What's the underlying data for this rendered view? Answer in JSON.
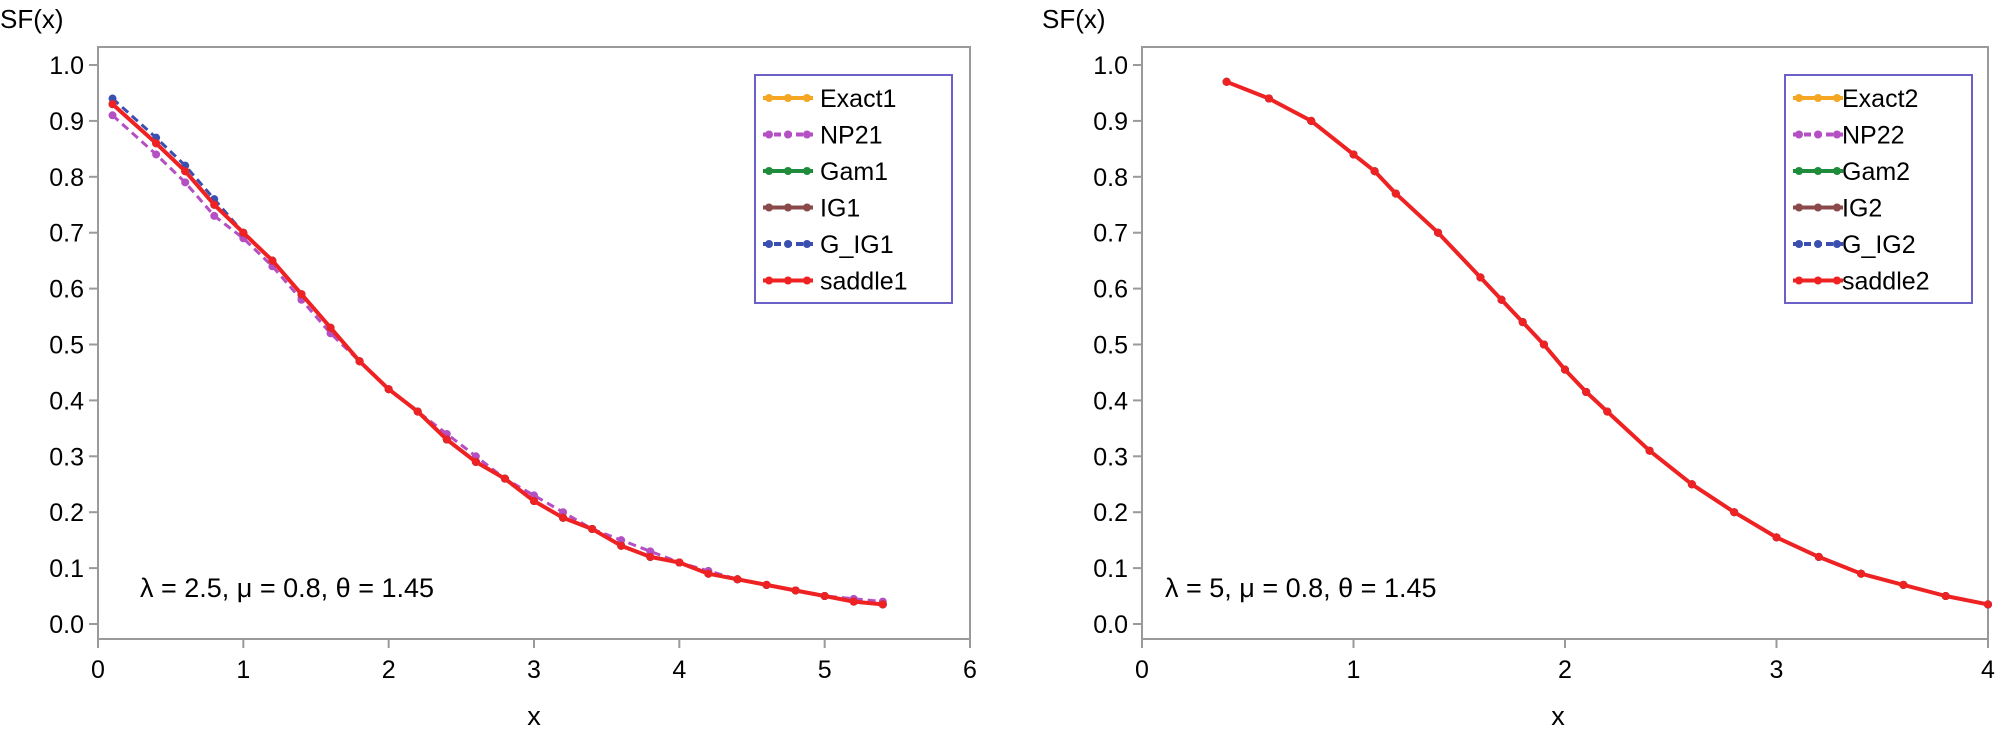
{
  "chart_data": [
    {
      "type": "line",
      "ylabel": "SF(x)",
      "xlabel": "x",
      "xlim": [
        0,
        6
      ],
      "ylim": [
        0.0,
        1.0
      ],
      "xticks": [
        "0",
        "1",
        "2",
        "3",
        "4",
        "5",
        "6"
      ],
      "yticks": [
        "0.0",
        "0.1",
        "0.2",
        "0.3",
        "0.4",
        "0.5",
        "0.6",
        "0.7",
        "0.8",
        "0.9",
        "1.0"
      ],
      "annotation": "λ = 2.5, μ = 0.8, θ = 1.45",
      "legend_position": "top-right",
      "x": [
        0.1,
        0.4,
        0.6,
        0.8,
        1.0,
        1.2,
        1.4,
        1.6,
        1.8,
        2.0,
        2.2,
        2.4,
        2.6,
        2.8,
        3.0,
        3.2,
        3.4,
        3.6,
        3.8,
        4.0,
        4.2,
        4.4,
        4.6,
        4.8,
        5.0,
        5.2,
        5.4
      ],
      "series": [
        {
          "name": "Exact1",
          "color": "#f5a623",
          "dash": "",
          "values": [
            0.93,
            0.86,
            0.81,
            0.75,
            0.7,
            0.65,
            0.59,
            0.53,
            0.47,
            0.42,
            0.38,
            0.33,
            0.29,
            0.26,
            0.22,
            0.19,
            0.17,
            0.14,
            0.12,
            0.11,
            0.09,
            0.08,
            0.07,
            0.06,
            0.05,
            0.04,
            0.035
          ]
        },
        {
          "name": "NP21",
          "color": "#b44fc4",
          "dash": "8,5",
          "values": [
            0.91,
            0.84,
            0.79,
            0.73,
            0.69,
            0.64,
            0.58,
            0.52,
            0.47,
            0.42,
            0.38,
            0.34,
            0.3,
            0.26,
            0.23,
            0.2,
            0.17,
            0.15,
            0.13,
            0.11,
            0.095,
            0.08,
            0.07,
            0.06,
            0.05,
            0.045,
            0.04
          ]
        },
        {
          "name": "Gam1",
          "color": "#1e8c3a",
          "dash": "",
          "values": [
            0.93,
            0.86,
            0.81,
            0.75,
            0.7,
            0.65,
            0.59,
            0.53,
            0.47,
            0.42,
            0.38,
            0.33,
            0.29,
            0.26,
            0.22,
            0.19,
            0.17,
            0.14,
            0.12,
            0.11,
            0.09,
            0.08,
            0.07,
            0.06,
            0.05,
            0.04,
            0.035
          ]
        },
        {
          "name": "IG1",
          "color": "#8b4a4a",
          "dash": "",
          "values": [
            0.93,
            0.86,
            0.81,
            0.75,
            0.7,
            0.65,
            0.59,
            0.53,
            0.47,
            0.42,
            0.38,
            0.33,
            0.29,
            0.26,
            0.22,
            0.19,
            0.17,
            0.14,
            0.12,
            0.11,
            0.09,
            0.08,
            0.07,
            0.06,
            0.05,
            0.04,
            0.035
          ]
        },
        {
          "name": "G_IG1",
          "color": "#3b4fb0",
          "dash": "8,5",
          "values": [
            0.94,
            0.87,
            0.82,
            0.76,
            0.7,
            0.65,
            0.59,
            0.53,
            0.47,
            0.42,
            0.38,
            0.33,
            0.29,
            0.26,
            0.22,
            0.19,
            0.17,
            0.14,
            0.12,
            0.11,
            0.09,
            0.08,
            0.07,
            0.06,
            0.05,
            0.04,
            0.035
          ]
        },
        {
          "name": "saddle1",
          "color": "#ee2222",
          "dash": "",
          "values": [
            0.93,
            0.86,
            0.81,
            0.75,
            0.7,
            0.65,
            0.59,
            0.53,
            0.47,
            0.42,
            0.38,
            0.33,
            0.29,
            0.26,
            0.22,
            0.19,
            0.17,
            0.14,
            0.12,
            0.11,
            0.09,
            0.08,
            0.07,
            0.06,
            0.05,
            0.04,
            0.035
          ]
        }
      ]
    },
    {
      "type": "line",
      "ylabel": "SF(x)",
      "xlabel": "x",
      "xlim": [
        0,
        4
      ],
      "ylim": [
        0.0,
        1.0
      ],
      "xticks": [
        "0",
        "1",
        "2",
        "3",
        "4"
      ],
      "yticks": [
        "0.0",
        "0.1",
        "0.2",
        "0.3",
        "0.4",
        "0.5",
        "0.6",
        "0.7",
        "0.8",
        "0.9",
        "1.0"
      ],
      "annotation": "λ = 5, μ = 0.8, θ = 1.45",
      "legend_position": "top-right",
      "x": [
        0.4,
        0.6,
        0.8,
        1.0,
        1.1,
        1.2,
        1.4,
        1.6,
        1.7,
        1.8,
        1.9,
        2.0,
        2.1,
        2.2,
        2.4,
        2.6,
        2.8,
        3.0,
        3.2,
        3.4,
        3.6,
        3.8,
        4.0
      ],
      "series": [
        {
          "name": "Exact2",
          "color": "#f5a623",
          "dash": "",
          "values": [
            0.97,
            0.94,
            0.9,
            0.84,
            0.81,
            0.77,
            0.7,
            0.62,
            0.58,
            0.54,
            0.5,
            0.455,
            0.415,
            0.38,
            0.31,
            0.25,
            0.2,
            0.155,
            0.12,
            0.09,
            0.07,
            0.05,
            0.035
          ]
        },
        {
          "name": "NP22",
          "color": "#b44fc4",
          "dash": "8,5",
          "values": [
            0.97,
            0.94,
            0.9,
            0.84,
            0.81,
            0.77,
            0.7,
            0.62,
            0.58,
            0.54,
            0.5,
            0.455,
            0.415,
            0.38,
            0.31,
            0.25,
            0.2,
            0.155,
            0.12,
            0.09,
            0.07,
            0.05,
            0.035
          ]
        },
        {
          "name": "Gam2",
          "color": "#1e8c3a",
          "dash": "",
          "values": [
            0.97,
            0.94,
            0.9,
            0.84,
            0.81,
            0.77,
            0.7,
            0.62,
            0.58,
            0.54,
            0.5,
            0.455,
            0.415,
            0.38,
            0.31,
            0.25,
            0.2,
            0.155,
            0.12,
            0.09,
            0.07,
            0.05,
            0.035
          ]
        },
        {
          "name": "IG2",
          "color": "#8b4a4a",
          "dash": "",
          "values": [
            0.97,
            0.94,
            0.9,
            0.84,
            0.81,
            0.77,
            0.7,
            0.62,
            0.58,
            0.54,
            0.5,
            0.455,
            0.415,
            0.38,
            0.31,
            0.25,
            0.2,
            0.155,
            0.12,
            0.09,
            0.07,
            0.05,
            0.035
          ]
        },
        {
          "name": "G_IG2",
          "color": "#3b4fb0",
          "dash": "8,5",
          "values": [
            0.97,
            0.94,
            0.9,
            0.84,
            0.81,
            0.77,
            0.7,
            0.62,
            0.58,
            0.54,
            0.5,
            0.455,
            0.415,
            0.38,
            0.31,
            0.25,
            0.2,
            0.155,
            0.12,
            0.09,
            0.07,
            0.05,
            0.035
          ]
        },
        {
          "name": "saddle2",
          "color": "#ee2222",
          "dash": "",
          "values": [
            0.97,
            0.94,
            0.9,
            0.84,
            0.81,
            0.77,
            0.7,
            0.62,
            0.58,
            0.54,
            0.5,
            0.455,
            0.415,
            0.38,
            0.31,
            0.25,
            0.2,
            0.155,
            0.12,
            0.09,
            0.07,
            0.05,
            0.035
          ]
        }
      ]
    }
  ]
}
